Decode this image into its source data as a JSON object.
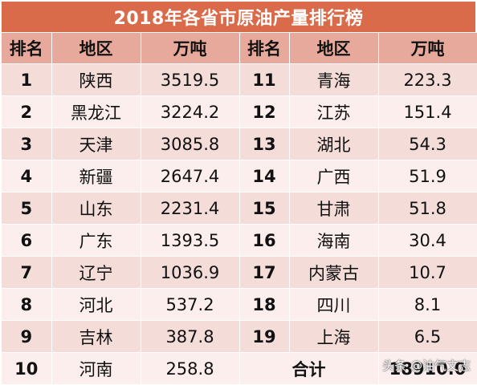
{
  "title": "2018年各省市原油产量排行榜",
  "headers": {
    "rank": "排名",
    "region": "地区",
    "value": "万吨"
  },
  "left": [
    {
      "rank": "1",
      "region": "陕西",
      "value": "3519.5"
    },
    {
      "rank": "2",
      "region": "黑龙江",
      "value": "3224.2"
    },
    {
      "rank": "3",
      "region": "天津",
      "value": "3085.8"
    },
    {
      "rank": "4",
      "region": "新疆",
      "value": "2647.4"
    },
    {
      "rank": "5",
      "region": "山东",
      "value": "2231.4"
    },
    {
      "rank": "6",
      "region": "广东",
      "value": "1393.5"
    },
    {
      "rank": "7",
      "region": "辽宁",
      "value": "1036.9"
    },
    {
      "rank": "8",
      "region": "河北",
      "value": "537.2"
    },
    {
      "rank": "9",
      "region": "吉林",
      "value": "387.8"
    },
    {
      "rank": "10",
      "region": "河南",
      "value": "258.8"
    }
  ],
  "right": [
    {
      "rank": "11",
      "region": "青海",
      "value": "223.3"
    },
    {
      "rank": "12",
      "region": "江苏",
      "value": "151.4"
    },
    {
      "rank": "13",
      "region": "湖北",
      "value": "54.3"
    },
    {
      "rank": "14",
      "region": "广西",
      "value": "51.9"
    },
    {
      "rank": "15",
      "region": "甘肃",
      "value": "51.8"
    },
    {
      "rank": "16",
      "region": "海南",
      "value": "30.4"
    },
    {
      "rank": "17",
      "region": "内蒙古",
      "value": "10.7"
    },
    {
      "rank": "18",
      "region": "四川",
      "value": "8.1"
    },
    {
      "rank": "19",
      "region": "上海",
      "value": "6.5"
    }
  ],
  "total": {
    "label": "合计",
    "value": "18910.0"
  },
  "watermark": "头条 @油气文志",
  "colors": {
    "title_bg": "#d96a4a",
    "header_bg": "#e7a99c",
    "row_odd": "#f4dcd8",
    "row_even": "#fbeeec"
  }
}
